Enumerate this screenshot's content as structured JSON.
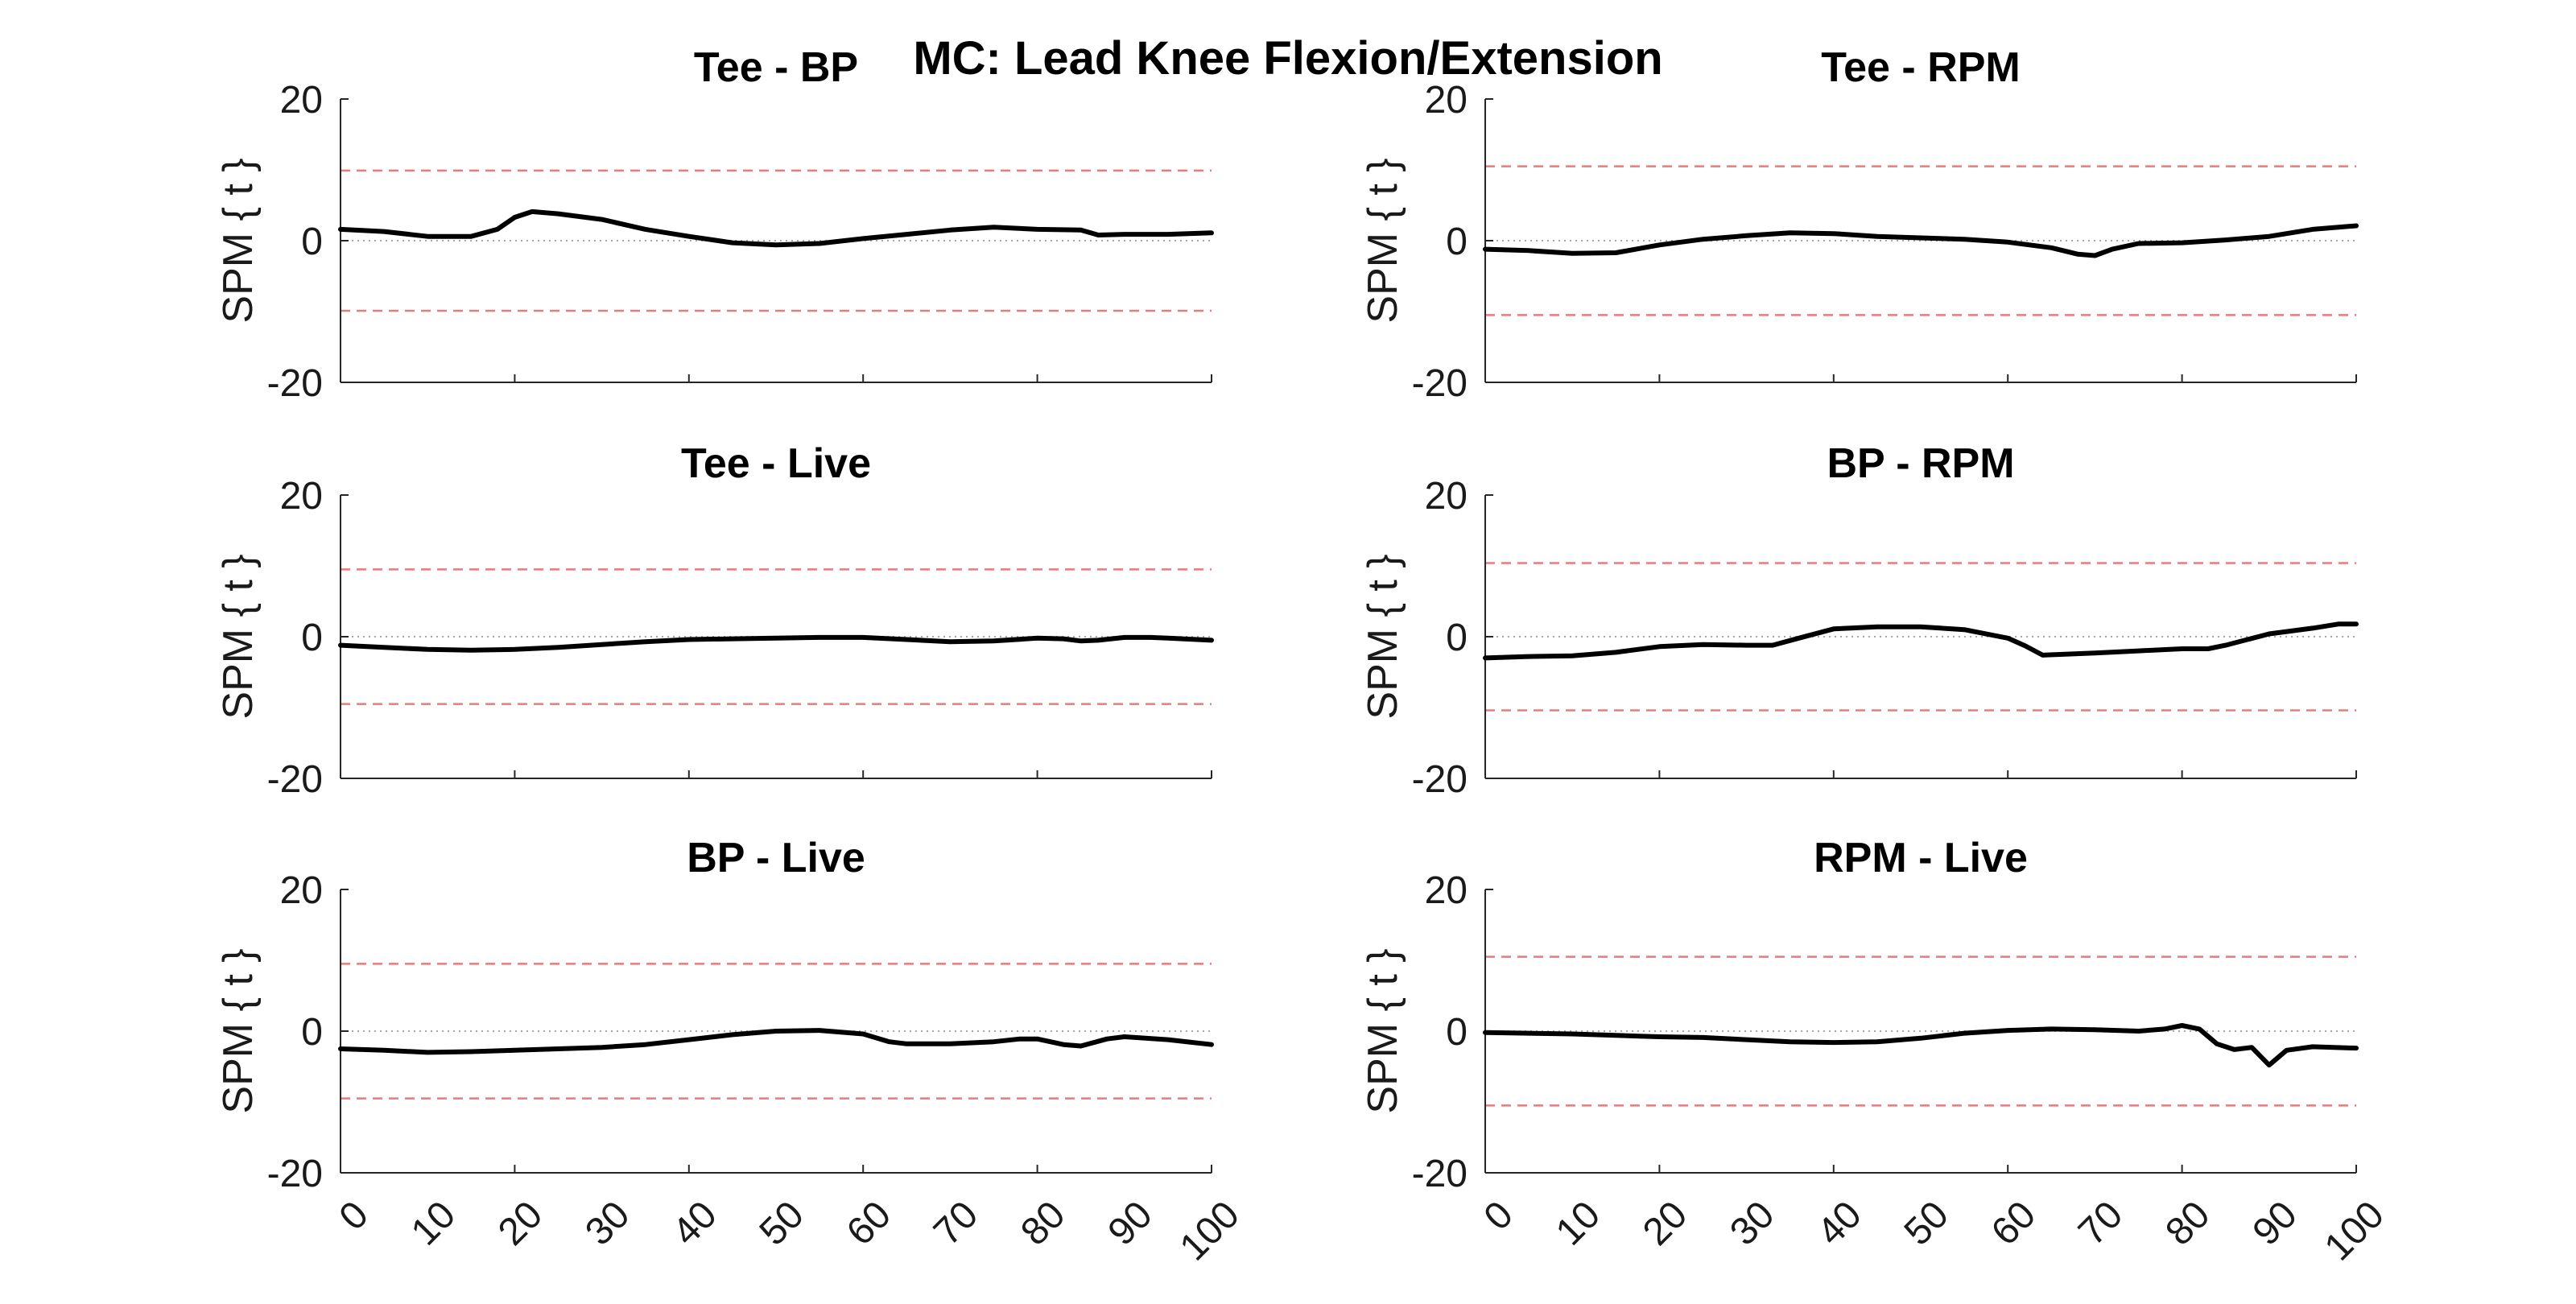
{
  "figure": {
    "title": "MC: Lead Knee Flexion/Extension"
  },
  "chart_data": [
    {
      "type": "line",
      "title": "Tee - BP",
      "ylabel": "SPM { t }",
      "xlabel": "",
      "xlim": [
        0,
        100
      ],
      "ylim": [
        -20,
        20
      ],
      "yticks": [
        -20,
        0,
        20
      ],
      "xticks": [],
      "threshold": 9.9,
      "x": [
        0,
        5,
        10,
        15,
        18,
        20,
        22,
        25,
        30,
        35,
        40,
        45,
        50,
        55,
        60,
        65,
        70,
        75,
        80,
        85,
        87,
        90,
        95,
        100
      ],
      "series": [
        {
          "values": [
            1.6,
            1.3,
            0.6,
            0.6,
            1.6,
            3.3,
            4.1,
            3.8,
            3.0,
            1.6,
            0.6,
            -0.3,
            -0.6,
            -0.4,
            0.3,
            0.9,
            1.5,
            1.9,
            1.6,
            1.5,
            0.8,
            0.9,
            0.9,
            1.1
          ]
        }
      ]
    },
    {
      "type": "line",
      "title": "Tee - RPM",
      "ylabel": "SPM { t }",
      "xlabel": "",
      "xlim": [
        0,
        100
      ],
      "ylim": [
        -20,
        20
      ],
      "yticks": [
        -20,
        0,
        20
      ],
      "xticks": [],
      "threshold": 10.5,
      "x": [
        0,
        5,
        10,
        15,
        20,
        25,
        30,
        35,
        40,
        45,
        50,
        55,
        60,
        65,
        68,
        70,
        72,
        75,
        80,
        85,
        90,
        95,
        100
      ],
      "series": [
        {
          "values": [
            -1.2,
            -1.4,
            -1.8,
            -1.7,
            -0.6,
            0.2,
            0.7,
            1.1,
            1.0,
            0.6,
            0.4,
            0.2,
            -0.2,
            -1.0,
            -1.9,
            -2.1,
            -1.2,
            -0.4,
            -0.3,
            0.1,
            0.6,
            1.6,
            2.1
          ]
        }
      ]
    },
    {
      "type": "line",
      "title": "Tee - Live",
      "ylabel": "SPM { t }",
      "xlabel": "",
      "xlim": [
        0,
        100
      ],
      "ylim": [
        -20,
        20
      ],
      "yticks": [
        -20,
        0,
        20
      ],
      "xticks": [],
      "threshold": 9.5,
      "x": [
        0,
        5,
        10,
        15,
        20,
        25,
        30,
        35,
        40,
        45,
        50,
        55,
        60,
        65,
        70,
        75,
        80,
        83,
        85,
        87,
        90,
        93,
        95,
        100
      ],
      "series": [
        {
          "values": [
            -1.2,
            -1.5,
            -1.8,
            -1.9,
            -1.8,
            -1.5,
            -1.1,
            -0.7,
            -0.4,
            -0.3,
            -0.2,
            -0.1,
            -0.1,
            -0.4,
            -0.7,
            -0.6,
            -0.2,
            -0.3,
            -0.6,
            -0.5,
            -0.1,
            -0.1,
            -0.2,
            -0.5
          ]
        }
      ]
    },
    {
      "type": "line",
      "title": "BP - RPM",
      "ylabel": "SPM { t }",
      "xlabel": "",
      "xlim": [
        0,
        100
      ],
      "ylim": [
        -20,
        20
      ],
      "yticks": [
        -20,
        0,
        20
      ],
      "xticks": [],
      "threshold": 10.4,
      "x": [
        0,
        5,
        10,
        15,
        20,
        25,
        30,
        33,
        36,
        40,
        45,
        50,
        55,
        60,
        62,
        64,
        66,
        70,
        75,
        80,
        83,
        85,
        90,
        95,
        98,
        100
      ],
      "series": [
        {
          "values": [
            -3.0,
            -2.8,
            -2.7,
            -2.2,
            -1.4,
            -1.1,
            -1.2,
            -1.2,
            -0.2,
            1.1,
            1.4,
            1.4,
            1.0,
            -0.2,
            -1.3,
            -2.6,
            -2.5,
            -2.3,
            -2.0,
            -1.7,
            -1.7,
            -1.2,
            0.4,
            1.2,
            1.8,
            1.8
          ]
        }
      ]
    },
    {
      "type": "line",
      "title": "BP - Live",
      "ylabel": "SPM { t }",
      "xlabel": "",
      "xlim": [
        0,
        100
      ],
      "ylim": [
        -20,
        20
      ],
      "yticks": [
        -20,
        0,
        20
      ],
      "xticks": [
        0,
        10,
        20,
        30,
        40,
        50,
        60,
        70,
        80,
        90,
        100
      ],
      "threshold": 9.5,
      "x": [
        0,
        5,
        10,
        15,
        20,
        25,
        30,
        35,
        40,
        45,
        50,
        55,
        60,
        63,
        65,
        70,
        75,
        78,
        80,
        83,
        85,
        88,
        90,
        95,
        100
      ],
      "series": [
        {
          "values": [
            -2.5,
            -2.7,
            -3.0,
            -2.9,
            -2.7,
            -2.5,
            -2.3,
            -1.9,
            -1.2,
            -0.5,
            0.0,
            0.1,
            -0.4,
            -1.5,
            -1.8,
            -1.8,
            -1.5,
            -1.1,
            -1.1,
            -1.9,
            -2.1,
            -1.1,
            -0.8,
            -1.2,
            -1.9
          ]
        }
      ]
    },
    {
      "type": "line",
      "title": "RPM - Live",
      "ylabel": "SPM { t }",
      "xlabel": "",
      "xlim": [
        0,
        100
      ],
      "ylim": [
        -20,
        20
      ],
      "yticks": [
        -20,
        0,
        20
      ],
      "xticks": [
        0,
        10,
        20,
        30,
        40,
        50,
        60,
        70,
        80,
        90,
        100
      ],
      "threshold": 10.5,
      "x": [
        0,
        5,
        10,
        15,
        20,
        25,
        30,
        35,
        40,
        45,
        50,
        55,
        60,
        65,
        70,
        75,
        78,
        80,
        82,
        84,
        86,
        88,
        90,
        92,
        95,
        100
      ],
      "series": [
        {
          "values": [
            -0.2,
            -0.3,
            -0.4,
            -0.6,
            -0.8,
            -0.9,
            -1.2,
            -1.5,
            -1.6,
            -1.5,
            -1.0,
            -0.3,
            0.1,
            0.3,
            0.2,
            0.0,
            0.3,
            0.8,
            0.3,
            -1.8,
            -2.6,
            -2.3,
            -4.8,
            -2.7,
            -2.2,
            -2.4
          ]
        }
      ]
    }
  ]
}
